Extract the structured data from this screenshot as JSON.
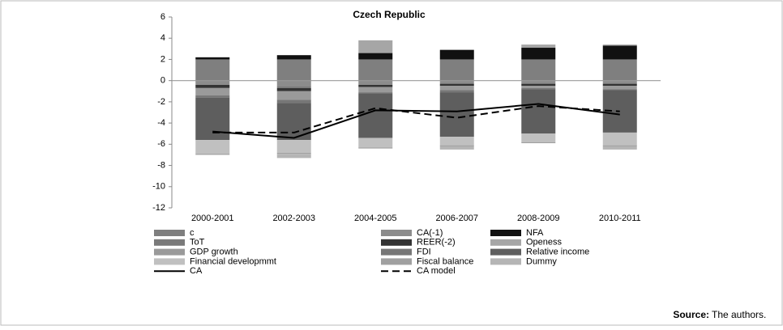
{
  "chart_data": {
    "type": "stacked-bar-line",
    "title": "Czech Republic",
    "categories": [
      "2000-2001",
      "2002-2003",
      "2004-2005",
      "2006-2007",
      "2008-2009",
      "2010-2011"
    ],
    "ylim": [
      -12,
      6
    ],
    "yticks": [
      -12,
      -10,
      -8,
      -6,
      -4,
      -2,
      0,
      2,
      4,
      6
    ],
    "series": [
      {
        "name": "c",
        "color": "#7f7f7f",
        "values": [
          2.0,
          2.0,
          2.0,
          2.0,
          2.0,
          2.0
        ]
      },
      {
        "name": "CA(-1)",
        "color": "#8c8c8c",
        "values": [
          -0.4,
          -0.5,
          -0.4,
          -0.3,
          -0.3,
          -0.3
        ]
      },
      {
        "name": "NFA",
        "color": "#111111",
        "values": [
          0.2,
          0.4,
          0.6,
          0.9,
          1.1,
          1.3
        ]
      },
      {
        "name": "ToT",
        "color": "#7a7a7a",
        "values": [
          0,
          -0.2,
          0,
          0,
          0,
          0
        ]
      },
      {
        "name": "REER(-2)",
        "color": "#333333",
        "values": [
          -0.3,
          -0.3,
          -0.2,
          -0.2,
          -0.2,
          -0.2
        ]
      },
      {
        "name": "Openess",
        "color": "#a6a6a6",
        "values": [
          0,
          0,
          1.2,
          0,
          0.3,
          0.1
        ]
      },
      {
        "name": "GDP growth",
        "color": "#9a9a9a",
        "values": [
          -0.7,
          -0.8,
          -0.5,
          -0.4,
          -0.2,
          -0.3
        ]
      },
      {
        "name": "FDI",
        "color": "#777777",
        "values": [
          -0.2,
          -0.3,
          -0.1,
          -0.2,
          -0.1,
          -0.1
        ]
      },
      {
        "name": "Relative income",
        "color": "#5e5e5e",
        "values": [
          -4.0,
          -3.5,
          -4.2,
          -4.2,
          -4.2,
          -4.0
        ]
      },
      {
        "name": "Financial developmmt",
        "color": "#c0c0c0",
        "values": [
          -1.3,
          -1.2,
          -0.9,
          -0.8,
          -0.8,
          -1.2
        ]
      },
      {
        "name": "Fiscal balance",
        "color": "#a0a0a0",
        "values": [
          -0.1,
          -0.1,
          -0.1,
          -0.1,
          -0.1,
          -0.1
        ]
      },
      {
        "name": "Dummy",
        "color": "#b5b5b5",
        "values": [
          0,
          -0.4,
          0,
          -0.3,
          0,
          -0.3
        ]
      }
    ],
    "lines": [
      {
        "name": "CA",
        "color": "#000000",
        "style": "solid",
        "values": [
          -4.8,
          -5.4,
          -2.8,
          -2.9,
          -2.2,
          -3.2
        ]
      },
      {
        "name": "CA model",
        "color": "#000000",
        "style": "dashed",
        "values": [
          -4.9,
          -4.9,
          -2.6,
          -3.5,
          -2.4,
          -2.9
        ]
      }
    ],
    "source": {
      "label": "Source:",
      "text": "The authors."
    }
  }
}
